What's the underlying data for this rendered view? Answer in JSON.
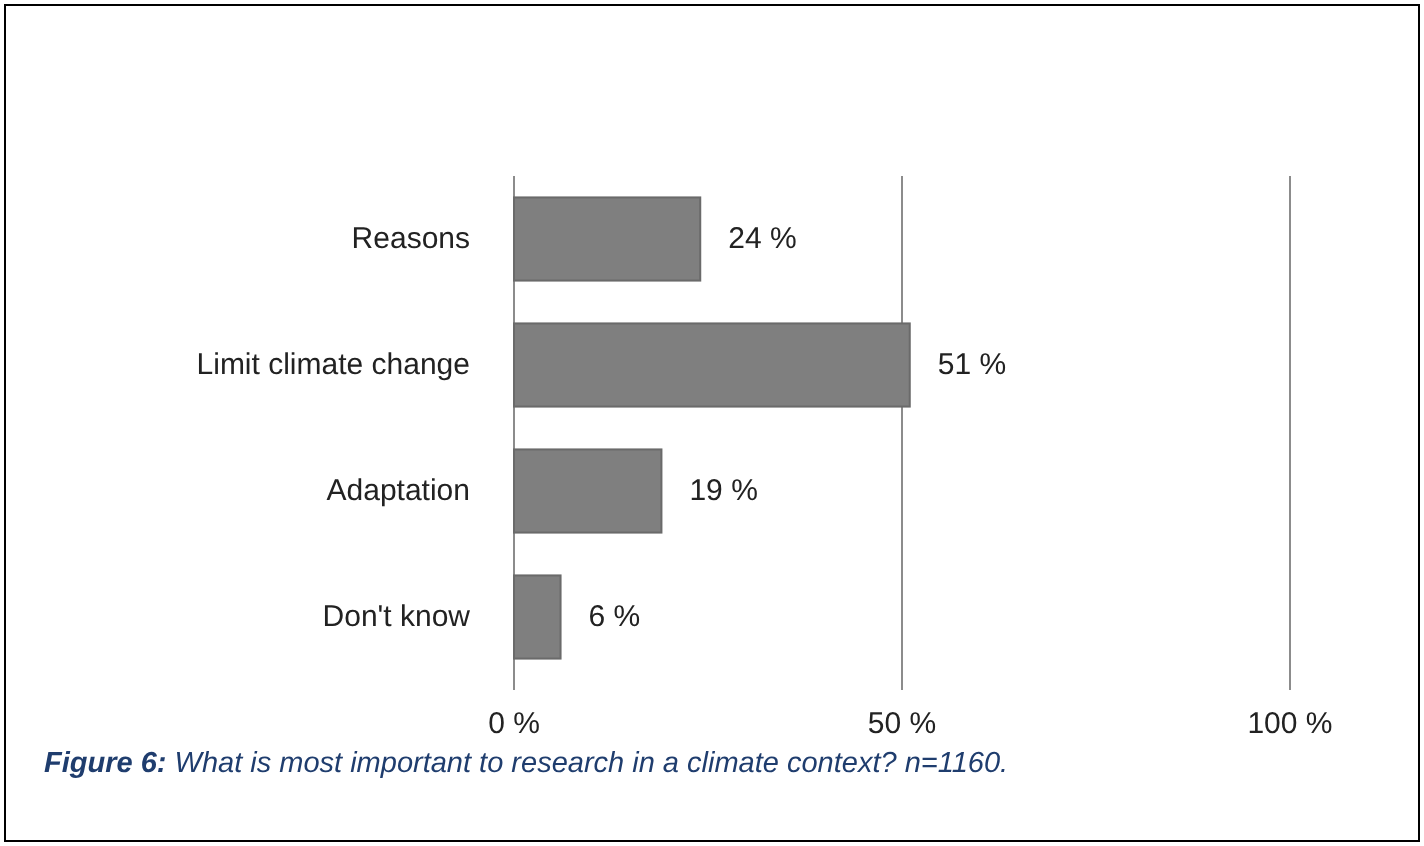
{
  "chart_data": {
    "type": "bar",
    "orientation": "horizontal",
    "categories": [
      "Reasons",
      "Limit climate change",
      "Adaptation",
      "Don't know"
    ],
    "values": [
      24,
      51,
      19,
      6
    ],
    "value_labels": [
      "24 %",
      "51 %",
      "19 %",
      "6 %"
    ],
    "color": "#7f7f7f",
    "xlim": [
      0,
      100
    ],
    "xticks": [
      {
        "value": 0,
        "label": "0 %"
      },
      {
        "value": 50,
        "label": "50 %"
      },
      {
        "value": 100,
        "label": "100 %"
      }
    ],
    "grid": "x",
    "annotations": [
      "Figure 6: What is most important to research in a climate context? n=1160."
    ]
  }
}
